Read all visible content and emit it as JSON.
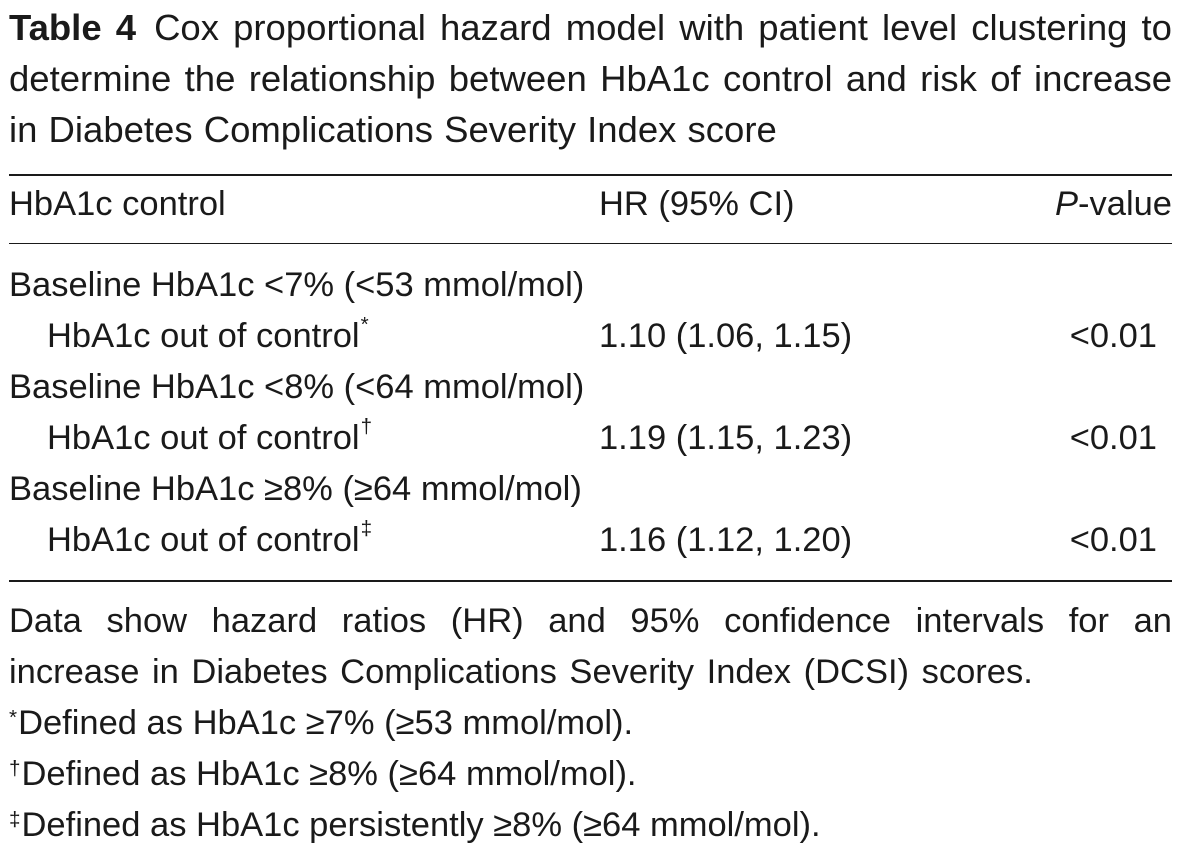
{
  "table": {
    "label": "Table 4",
    "caption": "Cox proportional hazard model with patient level clustering to determine the relationship between HbA1c control and risk of increase in Diabetes Complications Severity Index score",
    "headers": {
      "label": "HbA1c control",
      "hr": "HR (95% CI)",
      "p_italic": "P",
      "p_rest": "-value"
    },
    "groups": [
      {
        "title": "Baseline HbA1c <7% (<53 mmol/mol)",
        "row": {
          "label": "HbA1c out of control",
          "mark": "*",
          "hr": "1.10 (1.06, 1.15)",
          "p": "<0.01"
        }
      },
      {
        "title": "Baseline HbA1c <8% (<64 mmol/mol)",
        "row": {
          "label": "HbA1c out of control",
          "mark": "†",
          "hr": "1.19 (1.15, 1.23)",
          "p": "<0.01"
        }
      },
      {
        "title": "Baseline HbA1c ≥8% (≥64 mmol/mol)",
        "row": {
          "label": "HbA1c out of control",
          "mark": "‡",
          "hr": "1.16 (1.12, 1.20)",
          "p": "<0.01"
        }
      }
    ],
    "footnote": "Data show hazard ratios (HR) and 95% confidence intervals for an increase in Diabetes Complications Severity Index (DCSI) scores.",
    "notes": [
      {
        "mark": "*",
        "text": "Defined as HbA1c ≥7% (≥53 mmol/mol)."
      },
      {
        "mark": "†",
        "text": "Defined as HbA1c ≥8% (≥64 mmol/mol)."
      },
      {
        "mark": "‡",
        "text": "Defined as HbA1c persistently ≥8% (≥64 mmol/mol)."
      }
    ]
  }
}
